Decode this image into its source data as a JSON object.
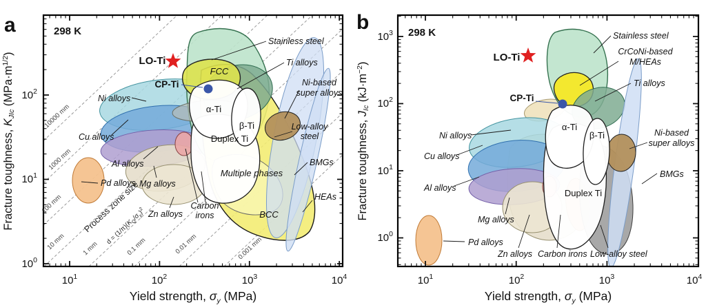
{
  "colors": {
    "lo_ti": "#e02020",
    "cp_ti": "#3a56a8"
  },
  "panels": {
    "a": {
      "letter": "a",
      "temp": "298 K",
      "ylabel": {
        "prefix": "Fracture toughness, ",
        "sym": "K",
        "sub": "JIc",
        "unit_open": " (MPa·m",
        "sup": "1/2",
        "unit_close": ")"
      },
      "xlabel": {
        "prefix": "Yield strength, ",
        "sym": "σ",
        "sub": "y",
        "unit": " (MPa)"
      },
      "xticks": [
        {
          "base": "10",
          "exp": "1"
        },
        {
          "base": "10",
          "exp": "2"
        },
        {
          "base": "10",
          "exp": "3"
        },
        {
          "base": "10",
          "exp": "4"
        }
      ],
      "yticks": [
        {
          "base": "10",
          "exp": "0"
        },
        {
          "base": "10",
          "exp": "1"
        },
        {
          "base": "10",
          "exp": "2"
        }
      ],
      "points": {
        "lo_ti": "LO-Ti",
        "cp_ti": "CP-Ti"
      },
      "labels": {
        "stainless": "Stainless steel",
        "ti_alloys": "Ti alloys",
        "ni_based_1": "Ni-based",
        "ni_based_2": "super alloys",
        "low_alloy_1": "Low-alloy",
        "low_alloy_2": "steel",
        "bmgs": "BMGs",
        "heas": "HEAs",
        "fcc": "FCC",
        "alpha_ti": "α-Ti",
        "beta_ti": "β-Ti",
        "duplex_ti": "Duplex Ti",
        "multiple_phases": "Multiple phases",
        "bcc": "BCC",
        "ni_alloys": "Ni alloys",
        "cu_alloys": "Cu alloys",
        "al_alloys": "Al alloys",
        "pd_alloys": "Pd alloys",
        "mg_alloys": "Mg alloys",
        "zn_alloys": "Zn alloys",
        "carbon_irons_1": "Carbon",
        "carbon_irons_2": "irons"
      },
      "process_zone": {
        "title": "Process zone size",
        "formula": {
          "p1": "d = (1/π)(",
          "p2": "K",
          "p3": "Q",
          "p4": "/σ",
          "p5": "y",
          "p6": ")",
          "p7": "2"
        },
        "lines": [
          "10000 mm",
          "1000 mm",
          "100 mm",
          "10 mm",
          "1 mm",
          "0.1 mm",
          "0.01 mm",
          "0.001 mm"
        ]
      }
    },
    "b": {
      "letter": "b",
      "temp": "298 K",
      "ylabel": {
        "prefix": "Fracture toughness, ",
        "sym": "J",
        "sub": "Ic",
        "unit_open": " (kJ·m",
        "sup": "−2",
        "unit_close": ")"
      },
      "xlabel": {
        "prefix": "Yield strength, ",
        "sym": "σ",
        "sub": "y",
        "unit": " (MPa)"
      },
      "xticks": [
        {
          "base": "10",
          "exp": "1"
        },
        {
          "base": "10",
          "exp": "2"
        },
        {
          "base": "10",
          "exp": "3"
        },
        {
          "base": "10",
          "exp": "4"
        }
      ],
      "yticks": [
        {
          "base": "10",
          "exp": "0"
        },
        {
          "base": "10",
          "exp": "1"
        },
        {
          "base": "10",
          "exp": "2"
        },
        {
          "base": "10",
          "exp": "3"
        }
      ],
      "points": {
        "lo_ti": "LO-Ti",
        "cp_ti": "CP-Ti"
      },
      "labels": {
        "stainless": "Stainless steel",
        "crconi_1": "CrCoNi-based",
        "crconi_2": "M/HEAs",
        "ti_alloys": "Ti alloys",
        "ni_based_1": "Ni-based",
        "ni_based_2": "super alloys",
        "bmgs": "BMGs",
        "ni_alloys": "Ni alloys",
        "cu_alloys": "Cu alloys",
        "al_alloys": "Al alloys",
        "mg_alloys": "Mg alloys",
        "pd_alloys": "Pd alloys",
        "zn_alloys": "Zn alloys",
        "carbon_irons": "Carbon irons",
        "low_alloy": "Low-alloy steel",
        "duplex_ti": "Duplex Ti",
        "alpha_ti": "α-Ti",
        "beta_ti": "β-Ti"
      }
    }
  },
  "chart_data": [
    {
      "panel": "a",
      "type": "scatter",
      "title": "298 K",
      "xlabel": "Yield strength, σy (MPa)",
      "ylabel": "Fracture toughness, KJIc (MPa·m^1/2)",
      "xscale": "log",
      "yscale": "log",
      "xlim": [
        5,
        10000
      ],
      "ylim": [
        1,
        900
      ],
      "grid": false,
      "points": [
        {
          "name": "LO-Ti",
          "x": 140,
          "y": 235,
          "marker": "star",
          "color": "#e02020"
        },
        {
          "name": "CP-Ti",
          "x": 350,
          "y": 115,
          "marker": "circle",
          "color": "#3a56a8"
        }
      ],
      "regions": [
        {
          "name": "Stainless steel",
          "x": [
            150,
            900
          ],
          "y": [
            45,
            500
          ],
          "color": "#bce3cb"
        },
        {
          "name": "FCC",
          "x": [
            200,
            700
          ],
          "y": [
            120,
            280
          ],
          "color": "#dde24e"
        },
        {
          "name": "Ti alloys",
          "x": [
            350,
            1600
          ],
          "y": [
            45,
            140
          ],
          "color": "#7fab92"
        },
        {
          "name": "Ni-based super alloys",
          "x": [
            600,
            1600
          ],
          "y": [
            40,
            75
          ],
          "color": "#b3905c"
        },
        {
          "name": "Low-alloy steel",
          "x": [
            350,
            3500
          ],
          "y": [
            2,
            250
          ],
          "color": "#cfdef4"
        },
        {
          "name": "BMGs",
          "x": [
            700,
            4500
          ],
          "y": [
            1.5,
            90
          ],
          "color": "#cfdef4"
        },
        {
          "name": "HEAs",
          "x": [
            200,
            7000
          ],
          "y": [
            1.2,
            280
          ],
          "color": "#f3ec70"
        },
        {
          "name": "Multiple phases",
          "x": [
            250,
            2000
          ],
          "y": [
            5,
            30
          ],
          "color": "#f8f4ab"
        },
        {
          "name": "BCC",
          "x": [
            300,
            6000
          ],
          "y": [
            1.5,
            15
          ],
          "color": "#f3ec70"
        },
        {
          "name": "Ni alloys",
          "x": [
            25,
            700
          ],
          "y": [
            55,
            170
          ],
          "color": "#a8d8e2"
        },
        {
          "name": "Cu alloys",
          "x": [
            25,
            450
          ],
          "y": [
            28,
            90
          ],
          "color": "#74aad9"
        },
        {
          "name": "Al alloys",
          "x": [
            25,
            350
          ],
          "y": [
            20,
            45
          ],
          "color": "#af9fd0"
        },
        {
          "name": "Mg alloys",
          "x": [
            55,
            350
          ],
          "y": [
            9,
            28
          ],
          "color": "#e6decb"
        },
        {
          "name": "Zn alloys",
          "x": [
            70,
            280
          ],
          "y": [
            6,
            16
          ],
          "color": "#ece5d1"
        },
        {
          "name": "Carbon irons",
          "x": [
            180,
            300
          ],
          "y": [
            22,
            38
          ],
          "color": "#eaa6a6"
        },
        {
          "name": "Pd alloys",
          "x": [
            8,
            16
          ],
          "y": [
            5,
            17
          ],
          "color": "#f4c28e"
        },
        {
          "name": "α-Ti",
          "x": [
            230,
            850
          ],
          "y": [
            40,
            160
          ],
          "color": "#ffffff"
        },
        {
          "name": "β-Ti",
          "x": [
            450,
            1000
          ],
          "y": [
            28,
            110
          ],
          "color": "#ffffff"
        },
        {
          "name": "Duplex Ti",
          "x": [
            280,
            1300
          ],
          "y": [
            8,
            55
          ],
          "color": "#ffffff"
        }
      ],
      "isolines": {
        "label": "Process zone size",
        "formula": "d = (1/π)(KQ/σy)^2",
        "values_mm": [
          10000,
          1000,
          100,
          10,
          1,
          0.1,
          0.01,
          0.001
        ]
      }
    },
    {
      "panel": "b",
      "type": "scatter",
      "title": "298 K",
      "xlabel": "Yield strength, σy (MPa)",
      "ylabel": "Fracture toughness, JIc (kJ·m−2)",
      "xscale": "log",
      "yscale": "log",
      "xlim": [
        5,
        10000
      ],
      "ylim": [
        0.4,
        2000
      ],
      "grid": false,
      "points": [
        {
          "name": "LO-Ti",
          "x": 130,
          "y": 520,
          "marker": "star",
          "color": "#e02020"
        },
        {
          "name": "CP-Ti",
          "x": 310,
          "y": 100,
          "marker": "circle",
          "color": "#3a56a8"
        }
      ],
      "regions": [
        {
          "name": "Stainless steel",
          "x": [
            150,
            900
          ],
          "y": [
            55,
            1500
          ],
          "color": "#bce3cb"
        },
        {
          "name": "CrCoNi-based M/HEAs",
          "x": [
            200,
            600
          ],
          "y": [
            90,
            350
          ],
          "color": "#f6e826"
        },
        {
          "name": "Ti alloys",
          "x": [
            350,
            1500
          ],
          "y": [
            30,
            150
          ],
          "color": "#7fab92"
        },
        {
          "name": "Ni-based super alloys",
          "x": [
            600,
            1500
          ],
          "y": [
            15,
            60
          ],
          "color": "#b3905c"
        },
        {
          "name": "BMGs",
          "x": [
            700,
            4000
          ],
          "y": [
            0.3,
            300
          ],
          "color": "#cfdef4"
        },
        {
          "name": "Low-alloy steel",
          "x": [
            400,
            2000
          ],
          "y": [
            0.5,
            20
          ],
          "color": "#a3a3a3"
        },
        {
          "name": "Ni alloys",
          "x": [
            30,
            500
          ],
          "y": [
            15,
            120
          ],
          "color": "#a8d8e2"
        },
        {
          "name": "Cu alloys",
          "x": [
            30,
            450
          ],
          "y": [
            8,
            60
          ],
          "color": "#74aad9"
        },
        {
          "name": "Al alloys",
          "x": [
            30,
            350
          ],
          "y": [
            4,
            15
          ],
          "color": "#af9fd0"
        },
        {
          "name": "Mg alloys",
          "x": [
            50,
            400
          ],
          "y": [
            1,
            20
          ],
          "color": "#e6decb"
        },
        {
          "name": "Zn alloys",
          "x": [
            60,
            300
          ],
          "y": [
            0.8,
            6
          ],
          "color": "#ece5d1"
        },
        {
          "name": "Carbon irons",
          "x": [
            200,
            400
          ],
          "y": [
            0.8,
            8
          ],
          "color": "#f2b17c"
        },
        {
          "name": "Pd alloys",
          "x": [
            8,
            16
          ],
          "y": [
            0.4,
            2.5
          ],
          "color": "#f4c28e"
        },
        {
          "name": "α-Ti",
          "x": [
            250,
            800
          ],
          "y": [
            20,
            130
          ],
          "color": "#ffffff"
        },
        {
          "name": "β-Ti",
          "x": [
            450,
            1100
          ],
          "y": [
            5,
            90
          ],
          "color": "#ffffff"
        },
        {
          "name": "Duplex Ti",
          "x": [
            300,
            1300
          ],
          "y": [
            0.8,
            40
          ],
          "color": "#ffffff"
        }
      ]
    }
  ]
}
